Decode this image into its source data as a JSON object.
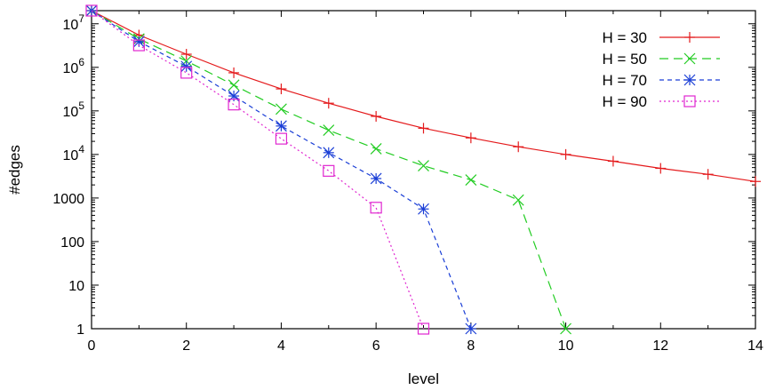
{
  "chart_data": {
    "type": "line",
    "xlabel": "level",
    "ylabel": "#edges",
    "xlim": [
      0,
      14
    ],
    "ylim": [
      1,
      20000000
    ],
    "yscale": "log",
    "grid": false,
    "legend_position": "top-right",
    "xticks": [
      "0",
      "2",
      "4",
      "6",
      "8",
      "10",
      "12",
      "14"
    ],
    "yticks": [
      {
        "value": 1,
        "label": "1"
      },
      {
        "value": 10,
        "label": "10"
      },
      {
        "value": 100,
        "label": "100"
      },
      {
        "value": 1000,
        "label": "1000"
      },
      {
        "value": 10000,
        "label": "10",
        "exp": "4"
      },
      {
        "value": 100000,
        "label": "10",
        "exp": "5"
      },
      {
        "value": 1000000,
        "label": "10",
        "exp": "6"
      },
      {
        "value": 10000000,
        "label": "10",
        "exp": "7"
      }
    ],
    "series": [
      {
        "name": "H = 30",
        "color": "#e41a1c",
        "marker": "plus",
        "dash": "",
        "x": [
          0,
          1,
          2,
          3,
          4,
          5,
          6,
          7,
          8,
          9,
          10,
          11,
          12,
          13,
          14
        ],
        "y": [
          20000000,
          5500000,
          2000000,
          750000,
          320000,
          150000,
          75000,
          40000,
          24000,
          15000,
          10000,
          7000,
          4800,
          3500,
          2400
        ]
      },
      {
        "name": "H = 50",
        "color": "#22cc22",
        "marker": "cross",
        "dash": "10,6",
        "x": [
          0,
          1,
          2,
          3,
          4,
          5,
          6,
          7,
          8,
          9,
          10
        ],
        "y": [
          20000000,
          4500000,
          1400000,
          390000,
          110000,
          36000,
          13500,
          5500,
          2600,
          900,
          1
        ]
      },
      {
        "name": "H = 70",
        "color": "#1a3ed6",
        "marker": "star",
        "dash": "5,4",
        "x": [
          0,
          1,
          2,
          3,
          4,
          5,
          6,
          7,
          8
        ],
        "y": [
          20000000,
          3900000,
          1050000,
          220000,
          45000,
          11000,
          2800,
          560,
          1
        ]
      },
      {
        "name": "H = 90",
        "color": "#e026d0",
        "marker": "square",
        "dash": "2,3",
        "x": [
          0,
          1,
          2,
          3,
          4,
          5,
          6,
          7
        ],
        "y": [
          20000000,
          3200000,
          750000,
          140000,
          23000,
          4200,
          600,
          1
        ]
      }
    ]
  }
}
